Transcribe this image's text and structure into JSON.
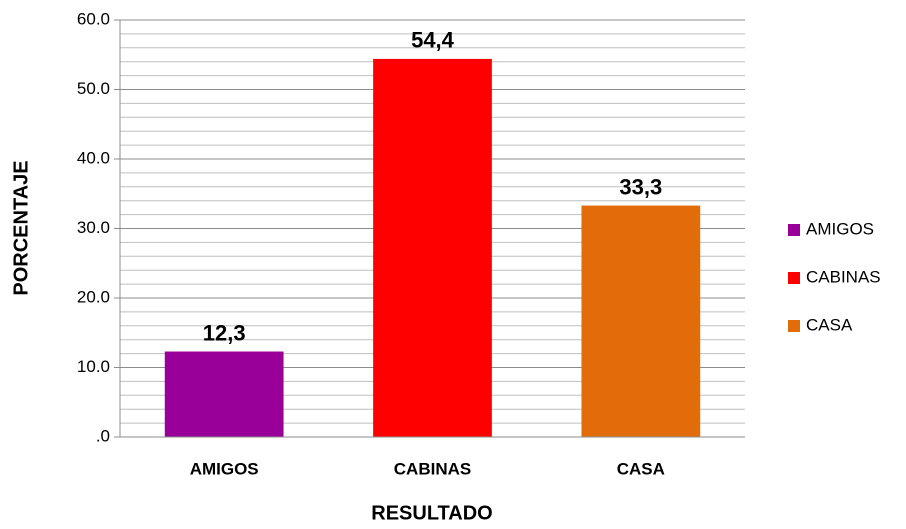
{
  "chart_data": {
    "type": "bar",
    "categories": [
      "AMIGOS",
      "CABINAS",
      "CASA"
    ],
    "values": [
      12.3,
      54.4,
      33.3
    ],
    "value_labels": [
      "12,3",
      "54,4",
      "33,3"
    ],
    "colors": [
      "#990099",
      "#ff0000",
      "#e36c0a"
    ],
    "xlabel": "RESULTADO",
    "ylabel": "PORCENTAJE",
    "ylim": [
      0,
      60
    ],
    "yticks": [
      {
        "value": 0,
        "label": ".0"
      },
      {
        "value": 10,
        "label": "10.0"
      },
      {
        "value": 20,
        "label": "20.0"
      },
      {
        "value": 30,
        "label": "30.0"
      },
      {
        "value": 40,
        "label": "40.0"
      },
      {
        "value": 50,
        "label": "50.0"
      },
      {
        "value": 60,
        "label": "60.0"
      }
    ],
    "minor_yticks": [
      2,
      4,
      6,
      8,
      12,
      14,
      16,
      18,
      22,
      24,
      26,
      28,
      32,
      34,
      36,
      38,
      42,
      44,
      46,
      48,
      52,
      54,
      56,
      58
    ],
    "grid": true,
    "legend": "right"
  }
}
